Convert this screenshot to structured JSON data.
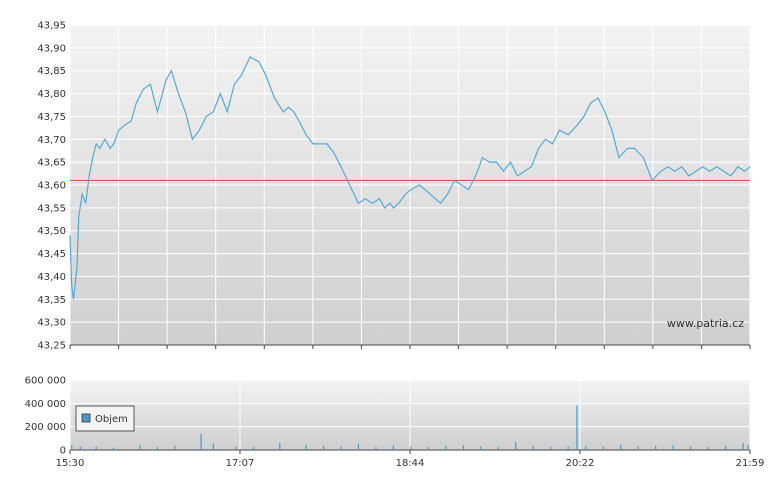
{
  "watermark": "www.patria.cz",
  "chart_data": [
    {
      "type": "line",
      "title": "",
      "xlabel": "",
      "ylabel": "",
      "x_range": [
        "15:30",
        "21:59"
      ],
      "ylim": [
        43.25,
        43.95
      ],
      "y_ticks": [
        "43,25",
        "43,30",
        "43,35",
        "43,40",
        "43,45",
        "43,50",
        "43,55",
        "43,60",
        "43,65",
        "43,70",
        "43,75",
        "43,80",
        "43,85",
        "43,90",
        "43,95"
      ],
      "grid": true,
      "colors": {
        "line": "#55aad4",
        "reference": "#dd4444"
      },
      "reference_line": 43.61,
      "series": [
        {
          "x": [
            "15:30",
            "15:31",
            "15:32",
            "15:34",
            "15:35",
            "15:37",
            "15:39",
            "15:41",
            "15:43",
            "15:45",
            "15:47",
            "15:50",
            "15:53",
            "15:55",
            "15:58",
            "16:01",
            "16:05",
            "16:08",
            "16:12",
            "16:16",
            "16:20",
            "16:25",
            "16:28",
            "16:32",
            "16:36",
            "16:40",
            "16:44",
            "16:48",
            "16:52",
            "16:56",
            "17:00",
            "17:04",
            "17:08",
            "17:13",
            "17:18",
            "17:22",
            "17:27",
            "17:32",
            "17:35",
            "17:38",
            "17:41",
            "17:45",
            "17:49",
            "17:53",
            "17:57",
            "18:01",
            "18:05",
            "18:10",
            "18:15",
            "18:19",
            "18:23",
            "18:27",
            "18:30",
            "18:33",
            "18:35",
            "18:38",
            "18:42",
            "18:45",
            "18:50",
            "18:56",
            "19:02",
            "19:06",
            "19:10",
            "19:14",
            "19:18",
            "19:22",
            "19:26",
            "19:30",
            "19:34",
            "19:38",
            "19:42",
            "19:46",
            "19:50",
            "19:54",
            "19:58",
            "20:02",
            "20:06",
            "20:10",
            "20:15",
            "20:20",
            "20:24",
            "20:28",
            "20:32",
            "20:36",
            "20:40",
            "20:44",
            "20:49",
            "20:53",
            "20:58",
            "21:03",
            "21:08",
            "21:12",
            "21:16",
            "21:20",
            "21:24",
            "21:28",
            "21:32",
            "21:36",
            "21:40",
            "21:44",
            "21:48",
            "21:52",
            "21:56",
            "21:59"
          ],
          "values": [
            43.49,
            43.38,
            43.35,
            43.42,
            43.53,
            43.58,
            43.56,
            43.62,
            43.66,
            43.69,
            43.68,
            43.7,
            43.68,
            43.69,
            43.72,
            43.73,
            43.74,
            43.78,
            43.81,
            43.82,
            43.76,
            43.83,
            43.85,
            43.8,
            43.76,
            43.7,
            43.72,
            43.75,
            43.76,
            43.8,
            43.76,
            43.82,
            43.84,
            43.88,
            43.87,
            43.84,
            43.79,
            43.76,
            43.77,
            43.76,
            43.74,
            43.71,
            43.69,
            43.69,
            43.69,
            43.67,
            43.64,
            43.6,
            43.56,
            43.57,
            43.56,
            43.57,
            43.55,
            43.56,
            43.55,
            43.56,
            43.58,
            43.59,
            43.6,
            43.58,
            43.56,
            43.58,
            43.61,
            43.6,
            43.59,
            43.62,
            43.66,
            43.65,
            43.65,
            43.63,
            43.65,
            43.62,
            43.63,
            43.64,
            43.68,
            43.7,
            43.69,
            43.72,
            43.71,
            43.73,
            43.75,
            43.78,
            43.79,
            43.76,
            43.72,
            43.66,
            43.68,
            43.68,
            43.66,
            43.61,
            43.63,
            43.64,
            43.63,
            43.64,
            43.62,
            43.63,
            43.64,
            43.63,
            43.64,
            43.63,
            43.62,
            43.64,
            43.63,
            43.64
          ]
        }
      ]
    },
    {
      "type": "bar",
      "title": "",
      "xlabel": "",
      "ylabel": "",
      "legend": [
        "Objem"
      ],
      "legend_position": "left",
      "x_ticks": [
        "15:30",
        "17:07",
        "18:44",
        "20:22",
        "21:59"
      ],
      "y_ticks": [
        "0",
        "200 000",
        "400 000",
        "600 000"
      ],
      "ylim": [
        0,
        600000
      ],
      "grid": true,
      "colors": {
        "bar": "#4a98c8"
      },
      "series": [
        {
          "name": "Objem",
          "x": [
            "15:31",
            "15:36",
            "15:45",
            "15:55",
            "16:10",
            "16:20",
            "16:30",
            "16:45",
            "16:52",
            "17:05",
            "17:15",
            "17:30",
            "17:45",
            "17:55",
            "18:05",
            "18:15",
            "18:25",
            "18:35",
            "18:45",
            "18:55",
            "19:05",
            "19:15",
            "19:25",
            "19:35",
            "19:45",
            "19:55",
            "20:05",
            "20:15",
            "20:20",
            "20:25",
            "20:35",
            "20:45",
            "20:55",
            "21:05",
            "21:15",
            "21:25",
            "21:35",
            "21:45",
            "21:55",
            "21:58"
          ],
          "values": [
            40000,
            25000,
            30000,
            20000,
            45000,
            25000,
            35000,
            140000,
            55000,
            30000,
            25000,
            60000,
            45000,
            35000,
            30000,
            55000,
            25000,
            40000,
            30000,
            25000,
            35000,
            40000,
            30000,
            25000,
            70000,
            35000,
            25000,
            30000,
            380000,
            35000,
            30000,
            45000,
            30000,
            35000,
            40000,
            30000,
            25000,
            35000,
            60000,
            45000
          ]
        }
      ]
    }
  ]
}
